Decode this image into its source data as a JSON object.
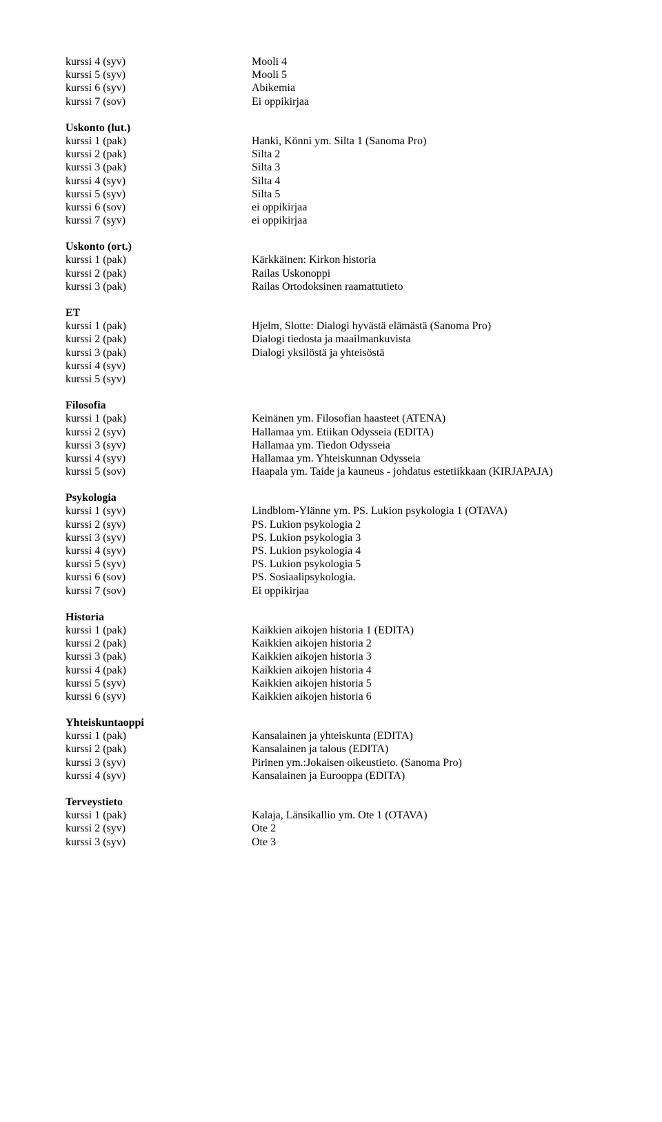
{
  "sections": [
    {
      "heading": null,
      "rows": [
        {
          "left": "kurssi 4 (syv)",
          "right": "Mooli 4"
        },
        {
          "left": "kurssi 5 (syv)",
          "right": "Mooli 5"
        },
        {
          "left": "kurssi 6 (syv)",
          "right": "Abikemia"
        },
        {
          "left": "kurssi 7 (sov)",
          "right": "Ei oppikirjaa"
        }
      ]
    },
    {
      "heading": "Uskonto (lut.)",
      "rows": [
        {
          "left": "kurssi 1 (pak)",
          "right": "Hanki, Könni ym. Silta 1 (Sanoma Pro)"
        },
        {
          "left": "kurssi 2 (pak)",
          "right": "Silta 2"
        },
        {
          "left": "kurssi 3 (pak)",
          "right": "Silta 3"
        },
        {
          "left": "kurssi 4 (syv)",
          "right": "Silta 4"
        },
        {
          "left": "kurssi 5 (syv)",
          "right": "Silta 5"
        },
        {
          "left": "kurssi 6 (sov)",
          "right": "ei oppikirjaa"
        },
        {
          "left": "kurssi 7 (syv)",
          "right": "ei oppikirjaa"
        }
      ]
    },
    {
      "heading": "Uskonto (ort.)",
      "rows": [
        {
          "left": "kurssi 1 (pak)",
          "right": "Kärkkäinen: Kirkon historia"
        },
        {
          "left": "kurssi 2 (pak)",
          "right": "Railas Uskonoppi"
        },
        {
          "left": "kurssi 3 (pak)",
          "right": "Railas Ortodoksinen raamattutieto"
        }
      ]
    },
    {
      "heading": "ET",
      "rows": [
        {
          "left": "kurssi 1 (pak)",
          "right": "Hjelm, Slotte: Dialogi hyvästä elämästä (Sanoma Pro)"
        },
        {
          "left": "kurssi 2 (pak)",
          "right": "Dialogi tiedosta ja maailmankuvista"
        },
        {
          "left": "kurssi 3 (pak)",
          "right": "Dialogi yksilöstä ja yhteisöstä"
        },
        {
          "left": "kurssi 4 (syv)",
          "right": ""
        },
        {
          "left": "kurssi 5 (syv)",
          "right": ""
        }
      ]
    },
    {
      "heading": "Filosofia",
      "rows": [
        {
          "left": "kurssi 1 (pak)",
          "right": "Keinänen ym. Filosofian haasteet (ATENA)"
        },
        {
          "left": "kurssi 2 (syv)",
          "right": "Hallamaa ym. Etiikan Odysseia (EDITA)"
        },
        {
          "left": "kurssi 3 (syv)",
          "right": "Hallamaa ym. Tiedon Odysseia"
        },
        {
          "left": "kurssi 4 (syv)",
          "right": "Hallamaa ym. Yhteiskunnan Odysseia"
        },
        {
          "left": "kurssi 5 (sov)",
          "right": "Haapala ym. Taide ja kauneus - johdatus estetiikkaan (KIRJAPAJA)"
        }
      ]
    },
    {
      "heading": "Psykologia",
      "rows": [
        {
          "left": "kurssi 1 (syv)",
          "right": "Lindblom-Ylänne ym. PS. Lukion psykologia 1 (OTAVA)"
        },
        {
          "left": "kurssi 2 (syv)",
          "right": "PS. Lukion psykologia 2"
        },
        {
          "left": "kurssi 3 (syv)",
          "right": "PS. Lukion psykologia 3"
        },
        {
          "left": "kurssi 4 (syv)",
          "right": "PS. Lukion psykologia 4"
        },
        {
          "left": "kurssi 5 (syv)",
          "right": "PS. Lukion psykologia 5"
        },
        {
          "left": "kurssi 6 (sov)",
          "right": "PS. Sosiaalipsykologia."
        },
        {
          "left": "kurssi 7 (sov)",
          "right": "Ei oppikirjaa"
        }
      ]
    },
    {
      "heading": "Historia",
      "rows": [
        {
          "left": "kurssi 1 (pak)",
          "right": "Kaikkien aikojen historia 1 (EDITA)"
        },
        {
          "left": "kurssi 2 (pak)",
          "right": "Kaikkien aikojen historia 2"
        },
        {
          "left": "kurssi 3 (pak)",
          "right": "Kaikkien aikojen historia 3"
        },
        {
          "left": "kurssi 4 (pak)",
          "right": "Kaikkien aikojen historia 4"
        },
        {
          "left": "kurssi 5 (syv)",
          "right": "Kaikkien aikojen historia 5"
        },
        {
          "left": "kurssi 6 (syv)",
          "right": "Kaikkien aikojen historia 6"
        }
      ]
    },
    {
      "heading": "Yhteiskuntaoppi",
      "rows": [
        {
          "left": "kurssi 1 (pak)",
          "right": "Kansalainen ja yhteiskunta (EDITA)"
        },
        {
          "left": "kurssi 2 (pak)",
          "right": "Kansalainen ja talous (EDITA)"
        },
        {
          "left": "kurssi 3 (syv)",
          "right": "Pirinen ym.:Jokaisen oikeustieto. (Sanoma Pro)"
        },
        {
          "left": "kurssi 4 (syv)",
          "right": "Kansalainen ja Eurooppa (EDITA)"
        }
      ]
    },
    {
      "heading": "Terveystieto",
      "rows": [
        {
          "left": "kurssi 1 (pak)",
          "right": "Kalaja, Länsikallio ym. Ote 1 (OTAVA)"
        },
        {
          "left": "kurssi 2 (syv)",
          "right": "Ote 2"
        },
        {
          "left": "kurssi 3 (syv)",
          "right": "Ote 3"
        }
      ]
    }
  ]
}
